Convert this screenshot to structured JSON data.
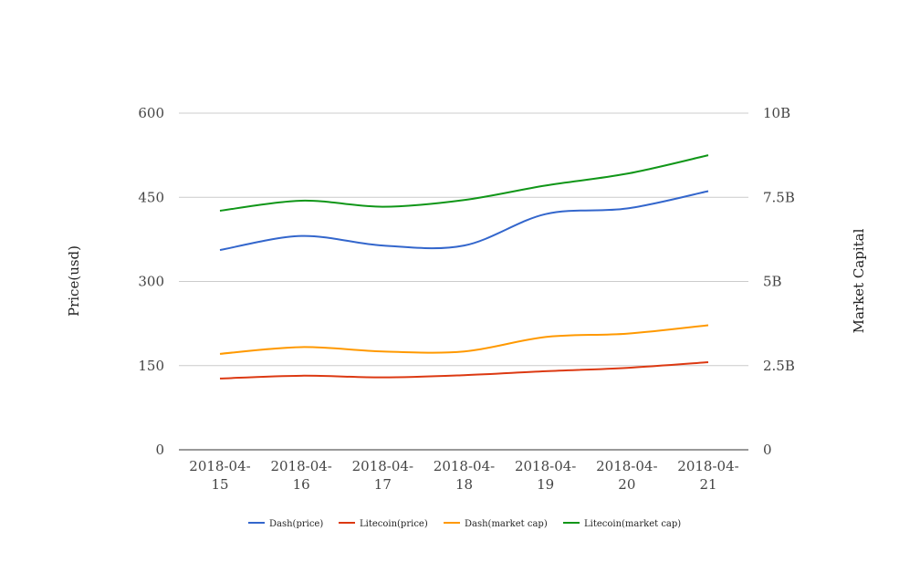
{
  "chart_data": {
    "type": "line",
    "categories": [
      "2018-04-15",
      "2018-04-16",
      "2018-04-17",
      "2018-04-18",
      "2018-04-19",
      "2018-04-20",
      "2018-04-21"
    ],
    "category_labels": [
      [
        "2018-04-",
        "15"
      ],
      [
        "2018-04-",
        "16"
      ],
      [
        "2018-04-",
        "17"
      ],
      [
        "2018-04-",
        "18"
      ],
      [
        "2018-04-",
        "19"
      ],
      [
        "2018-04-",
        "20"
      ],
      [
        "2018-04-",
        "21"
      ]
    ],
    "ylabel": "Price(usd)",
    "y2label": "Market Capital",
    "ylim": [
      0,
      600
    ],
    "y2lim": [
      0,
      10000000000
    ],
    "yticks": [
      "0",
      "150",
      "300",
      "450",
      "600"
    ],
    "y2ticks": [
      "0",
      "2.5B",
      "5B",
      "7.5B",
      "10B"
    ],
    "grid": true,
    "legend_position": "bottom",
    "series": [
      {
        "name": "Dash(price)",
        "axis": "left",
        "color": "#3366cc",
        "values": [
          356,
          381,
          364,
          364,
          420,
          430,
          461
        ]
      },
      {
        "name": "Litecoin(price)",
        "axis": "left",
        "color": "#dc3912",
        "values": [
          127,
          132,
          129,
          133,
          140,
          146,
          156
        ]
      },
      {
        "name": "Dash(market cap)",
        "axis": "right",
        "color": "#ff9900",
        "values": [
          2850000000,
          3050000000,
          2920000000,
          2920000000,
          3350000000,
          3450000000,
          3700000000
        ]
      },
      {
        "name": "Litecoin(market cap)",
        "axis": "right",
        "color": "#109618",
        "values": [
          7100000000,
          7400000000,
          7220000000,
          7420000000,
          7850000000,
          8200000000,
          8750000000
        ]
      }
    ]
  }
}
